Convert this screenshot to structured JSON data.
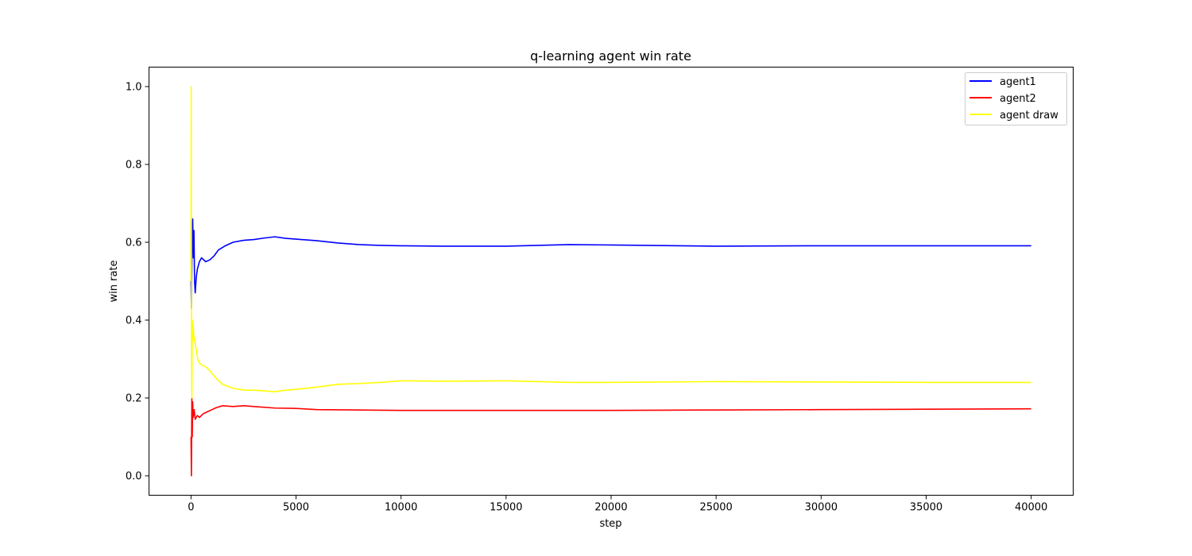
{
  "chart_data": {
    "type": "line",
    "title": "q-learning agent win rate",
    "xlabel": "step",
    "ylabel": "win rate",
    "xlim": [
      -2000,
      42000
    ],
    "ylim": [
      -0.05,
      1.05
    ],
    "xticks": [
      0,
      5000,
      10000,
      15000,
      20000,
      25000,
      30000,
      35000,
      40000
    ],
    "xtick_labels": [
      "0",
      "5000",
      "10000",
      "15000",
      "20000",
      "25000",
      "30000",
      "35000",
      "40000"
    ],
    "yticks": [
      0.0,
      0.2,
      0.4,
      0.6,
      0.8,
      1.0
    ],
    "ytick_labels": [
      "0.0",
      "0.2",
      "0.4",
      "0.6",
      "0.8",
      "1.0"
    ],
    "grid": false,
    "legend_position": "top-right",
    "series": [
      {
        "name": "agent1",
        "color": "#0000ff",
        "x": [
          0,
          20,
          50,
          80,
          110,
          140,
          170,
          200,
          250,
          300,
          400,
          500,
          700,
          900,
          1100,
          1300,
          1600,
          2000,
          2500,
          3000,
          3500,
          4000,
          4500,
          5000,
          6000,
          7000,
          8000,
          9000,
          10000,
          12000,
          15000,
          18000,
          20000,
          25000,
          30000,
          35000,
          40000
        ],
        "y": [
          0.5,
          0.43,
          0.6,
          0.66,
          0.56,
          0.63,
          0.5,
          0.47,
          0.51,
          0.53,
          0.55,
          0.56,
          0.55,
          0.555,
          0.565,
          0.58,
          0.59,
          0.6,
          0.605,
          0.607,
          0.611,
          0.614,
          0.61,
          0.608,
          0.604,
          0.598,
          0.594,
          0.592,
          0.591,
          0.59,
          0.59,
          0.594,
          0.593,
          0.59,
          0.591,
          0.591,
          0.591
        ]
      },
      {
        "name": "agent2",
        "color": "#ff0000",
        "x": [
          0,
          20,
          40,
          60,
          80,
          100,
          150,
          200,
          300,
          400,
          600,
          800,
          1000,
          1200,
          1500,
          2000,
          2500,
          3000,
          4000,
          5000,
          6000,
          8000,
          10000,
          12000,
          15000,
          20000,
          25000,
          30000,
          35000,
          40000
        ],
        "y": [
          0.1,
          0.0,
          0.2,
          0.1,
          0.19,
          0.15,
          0.17,
          0.145,
          0.155,
          0.15,
          0.16,
          0.165,
          0.17,
          0.175,
          0.18,
          0.178,
          0.18,
          0.178,
          0.174,
          0.173,
          0.17,
          0.169,
          0.168,
          0.168,
          0.168,
          0.168,
          0.169,
          0.17,
          0.171,
          0.172
        ]
      },
      {
        "name": "agent draw",
        "color": "#ffff00",
        "x": [
          0,
          10,
          25,
          40,
          60,
          80,
          100,
          130,
          160,
          200,
          260,
          320,
          400,
          500,
          700,
          900,
          1200,
          1500,
          2000,
          2500,
          3000,
          3500,
          4000,
          4500,
          5000,
          6000,
          7000,
          8000,
          9000,
          10000,
          12000,
          15000,
          18000,
          20000,
          25000,
          30000,
          35000,
          40000
        ],
        "y": [
          0.5,
          1.0,
          0.3,
          0.2,
          0.4,
          0.35,
          0.39,
          0.36,
          0.35,
          0.34,
          0.32,
          0.3,
          0.29,
          0.285,
          0.28,
          0.27,
          0.25,
          0.235,
          0.225,
          0.22,
          0.22,
          0.218,
          0.216,
          0.22,
          0.222,
          0.228,
          0.235,
          0.237,
          0.24,
          0.244,
          0.243,
          0.244,
          0.24,
          0.24,
          0.242,
          0.241,
          0.24,
          0.24
        ]
      }
    ]
  }
}
